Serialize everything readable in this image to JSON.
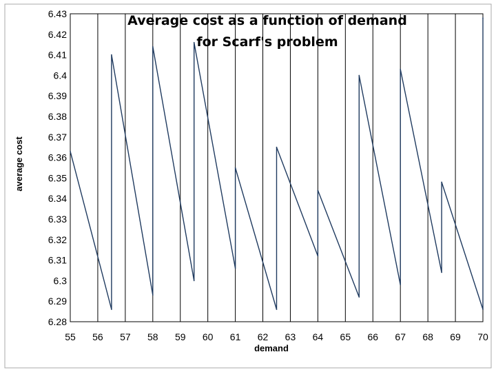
{
  "chart_data": {
    "type": "line",
    "title_lines": [
      "Average cost as a function of demand",
      "for Scarf's problem"
    ],
    "xlabel": "demand",
    "ylabel": "average cost",
    "x_tick_labels": [
      "55",
      "56",
      "57",
      "58",
      "59",
      "60",
      "61",
      "62",
      "63",
      "64",
      "65",
      "66",
      "67",
      "68",
      "69",
      "70"
    ],
    "y_tick_labels": [
      "6.28",
      "6.29",
      "6.3",
      "6.31",
      "6.32",
      "6.33",
      "6.34",
      "6.35",
      "6.36",
      "6.37",
      "6.38",
      "6.39",
      "6.4",
      "6.41",
      "6.42",
      "6.43"
    ],
    "ylim": [
      6.28,
      6.43
    ],
    "grid": "vertical",
    "colors": {
      "line": "#1f3a5f",
      "grid": "#000000",
      "frame": "#aaaaaa"
    },
    "series": [
      {
        "points": [
          [
            0,
            6.363
          ],
          [
            1,
            6.286
          ],
          [
            1,
            6.41
          ],
          [
            2,
            6.293
          ],
          [
            2,
            6.414
          ],
          [
            3,
            6.3
          ],
          [
            3,
            6.416
          ],
          [
            4,
            6.306
          ],
          [
            4,
            6.355
          ],
          [
            5,
            6.286
          ],
          [
            5,
            6.365
          ],
          [
            6,
            6.312
          ],
          [
            6,
            6.344
          ],
          [
            7,
            6.292
          ],
          [
            7,
            6.4
          ],
          [
            8,
            6.298
          ],
          [
            8,
            6.403
          ],
          [
            9,
            6.304
          ],
          [
            9,
            6.348
          ],
          [
            10,
            6.286
          ],
          [
            10,
            6.428
          ]
        ]
      }
    ]
  }
}
